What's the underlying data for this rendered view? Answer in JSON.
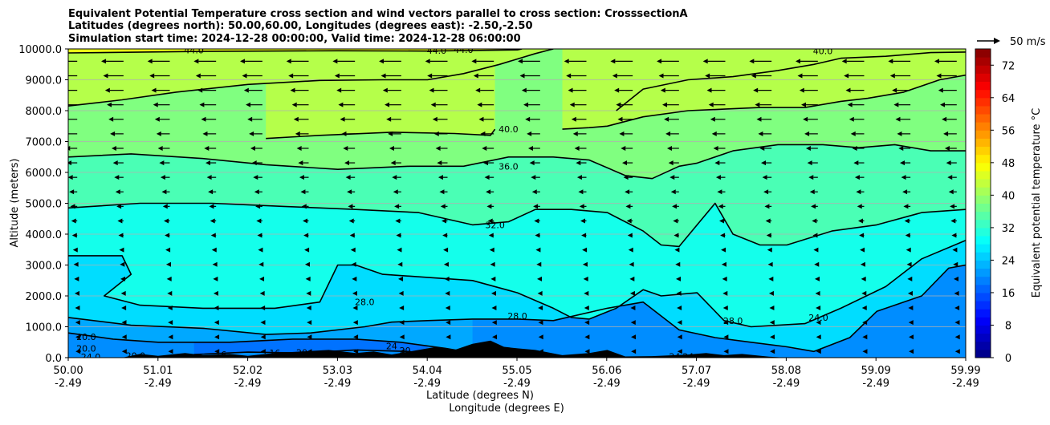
{
  "chart_data": {
    "type": "cross-section-contour",
    "title_lines": [
      "Equivalent Potential Temperature cross section and wind vectors parallel to cross section: CrosssectionA",
      "Latitudes (degrees north): 50.00,60.00, Longitudes (degrees east): -2.50,-2.50",
      "Simulation start time: 2024-12-28 00:00:00, Valid time: 2024-12-28 06:00:00"
    ],
    "xlabel_lat": "Latitude (degrees N)",
    "xlabel_lon": "Longitude (degrees E)",
    "ylabel": "Altitude (meters)",
    "x_tick_lat": [
      "50.00",
      "51.01",
      "52.02",
      "53.03",
      "54.04",
      "55.05",
      "56.06",
      "57.07",
      "58.08",
      "59.09",
      "59.99"
    ],
    "x_tick_lon": [
      "-2.49",
      "-2.49",
      "-2.49",
      "-2.49",
      "-2.49",
      "-2.49",
      "-2.49",
      "-2.49",
      "-2.49",
      "-2.49",
      "-2.49"
    ],
    "x_range": [
      50.0,
      59.99
    ],
    "y_range": [
      0,
      10000
    ],
    "y_ticks": [
      0,
      1000,
      2000,
      3000,
      4000,
      5000,
      6000,
      7000,
      8000,
      9000,
      10000
    ],
    "y_tick_labels": [
      "0.0",
      "1000.0",
      "2000.0",
      "3000.0",
      "4000.0",
      "5000.0",
      "6000.0",
      "7000.0",
      "8000.0",
      "9000.0",
      "10000.0"
    ],
    "grid": "horizontal",
    "colorbar": {
      "label": "Equivalent potential temperature °C",
      "min": 0,
      "max": 76,
      "ticks": [
        0,
        8,
        16,
        24,
        32,
        40,
        48,
        56,
        64,
        72
      ],
      "tick_labels": [
        "0",
        "8",
        "16",
        "24",
        "32",
        "40",
        "48",
        "56",
        "64",
        "72"
      ]
    },
    "quiver_key": {
      "label": "50 m/s"
    },
    "contours": [
      {
        "level": 44,
        "label": "44.0",
        "points": [
          [
            50.0,
            9870
          ],
          [
            51.5,
            9920
          ],
          [
            53.0,
            9940
          ],
          [
            54.0,
            9930
          ],
          [
            54.5,
            9950
          ],
          [
            55.0,
            9970
          ],
          [
            55.05,
            10000
          ]
        ]
      },
      {
        "level": 40,
        "label": "40.0",
        "points": [
          [
            50.0,
            8150
          ],
          [
            50.6,
            8350
          ],
          [
            51.2,
            8600
          ],
          [
            52.0,
            8850
          ],
          [
            52.8,
            8980
          ],
          [
            53.5,
            9000
          ],
          [
            54.0,
            9000
          ],
          [
            54.4,
            9200
          ],
          [
            54.8,
            9500
          ],
          [
            55.2,
            9850
          ],
          [
            55.4,
            10000
          ]
        ]
      },
      {
        "level": 40,
        "label": "",
        "points": [
          [
            56.1,
            8000
          ],
          [
            56.4,
            8700
          ],
          [
            56.9,
            9000
          ],
          [
            57.4,
            9100
          ],
          [
            57.9,
            9300
          ],
          [
            58.3,
            9500
          ],
          [
            58.6,
            9700
          ],
          [
            59.1,
            9760
          ],
          [
            59.6,
            9880
          ],
          [
            59.99,
            9900
          ]
        ]
      },
      {
        "level": 40,
        "label": "",
        "points": [
          [
            52.2,
            7100
          ],
          [
            52.8,
            7200
          ],
          [
            53.6,
            7300
          ],
          [
            54.3,
            7260
          ],
          [
            54.7,
            7200
          ],
          [
            54.75,
            7400
          ]
        ]
      },
      {
        "level": 40,
        "label": "",
        "points": [
          [
            55.5,
            7400
          ],
          [
            55.8,
            7450
          ],
          [
            56.0,
            7500
          ],
          [
            56.4,
            7800
          ],
          [
            56.9,
            8000
          ],
          [
            57.3,
            8050
          ],
          [
            57.7,
            8100
          ],
          [
            58.2,
            8100
          ],
          [
            58.6,
            8300
          ],
          [
            58.9,
            8400
          ],
          [
            59.3,
            8600
          ],
          [
            59.7,
            9000
          ],
          [
            59.99,
            9150
          ]
        ]
      },
      {
        "level": 36,
        "label": "36.0",
        "points": [
          [
            50.0,
            6500
          ],
          [
            50.7,
            6600
          ],
          [
            51.5,
            6450
          ],
          [
            52.2,
            6250
          ],
          [
            53.0,
            6100
          ],
          [
            53.8,
            6200
          ],
          [
            54.4,
            6200
          ],
          [
            54.9,
            6500
          ],
          [
            55.4,
            6500
          ],
          [
            55.8,
            6400
          ],
          [
            56.2,
            5900
          ],
          [
            56.5,
            5800
          ],
          [
            56.8,
            6200
          ],
          [
            57.0,
            6300
          ],
          [
            57.4,
            6700
          ],
          [
            57.9,
            6900
          ],
          [
            58.4,
            6900
          ],
          [
            58.8,
            6800
          ],
          [
            59.2,
            6900
          ],
          [
            59.6,
            6700
          ],
          [
            59.99,
            6700
          ]
        ]
      },
      {
        "level": 32,
        "label": "32.0",
        "points": [
          [
            50.0,
            4850
          ],
          [
            50.8,
            5000
          ],
          [
            51.6,
            5000
          ],
          [
            52.4,
            4900
          ],
          [
            53.2,
            4800
          ],
          [
            53.9,
            4700
          ],
          [
            54.5,
            4300
          ],
          [
            54.9,
            4400
          ],
          [
            55.2,
            4800
          ],
          [
            55.6,
            4800
          ],
          [
            56.0,
            4700
          ],
          [
            56.4,
            4100
          ],
          [
            56.6,
            3650
          ],
          [
            56.8,
            3600
          ],
          [
            57.0,
            4300
          ],
          [
            57.2,
            5000
          ],
          [
            57.4,
            4000
          ],
          [
            57.7,
            3650
          ],
          [
            58.0,
            3650
          ],
          [
            58.5,
            4100
          ],
          [
            59.0,
            4300
          ],
          [
            59.5,
            4700
          ],
          [
            59.99,
            4800
          ]
        ]
      },
      {
        "level": 28,
        "label": "28.0",
        "points": [
          [
            50.0,
            3300
          ],
          [
            50.6,
            3300
          ],
          [
            50.7,
            2700
          ],
          [
            50.4,
            2000
          ],
          [
            50.8,
            1700
          ],
          [
            51.5,
            1600
          ],
          [
            52.3,
            1600
          ],
          [
            52.8,
            1800
          ],
          [
            53.0,
            3000
          ],
          [
            53.2,
            3000
          ],
          [
            53.5,
            2700
          ],
          [
            54.0,
            2600
          ],
          [
            54.5,
            2500
          ],
          [
            55.0,
            2100
          ],
          [
            55.4,
            1600
          ],
          [
            55.6,
            1300
          ],
          [
            55.8,
            1250
          ],
          [
            56.1,
            1600
          ],
          [
            56.4,
            2200
          ],
          [
            56.6,
            2000
          ],
          [
            57.0,
            2100
          ],
          [
            57.3,
            1200
          ],
          [
            57.6,
            1000
          ],
          [
            58.2,
            1100
          ],
          [
            58.6,
            1600
          ],
          [
            59.1,
            2300
          ],
          [
            59.5,
            3200
          ],
          [
            59.99,
            3800
          ]
        ]
      },
      {
        "level": 24,
        "label": "24.0",
        "points": [
          [
            50.0,
            1300
          ],
          [
            50.7,
            1050
          ],
          [
            51.5,
            950
          ],
          [
            52.2,
            750
          ],
          [
            52.7,
            800
          ],
          [
            53.3,
            1000
          ],
          [
            53.6,
            1150
          ],
          [
            54.0,
            1200
          ],
          [
            54.5,
            1250
          ],
          [
            55.0,
            1250
          ],
          [
            55.4,
            1200
          ],
          [
            56.0,
            1600
          ],
          [
            56.4,
            1800
          ],
          [
            56.8,
            900
          ],
          [
            57.2,
            650
          ],
          [
            57.6,
            500
          ],
          [
            58.0,
            350
          ],
          [
            58.3,
            200
          ],
          [
            58.7,
            650
          ],
          [
            59.0,
            1500
          ],
          [
            59.5,
            2000
          ],
          [
            59.8,
            2900
          ],
          [
            59.99,
            3000
          ]
        ]
      },
      {
        "level": 20,
        "label": "20.0",
        "points": [
          [
            50.0,
            800
          ],
          [
            50.5,
            600
          ],
          [
            51.0,
            500
          ],
          [
            51.8,
            500
          ],
          [
            52.5,
            600
          ],
          [
            53.2,
            600
          ],
          [
            53.7,
            500
          ],
          [
            54.2,
            300
          ],
          [
            54.5,
            150
          ]
        ]
      },
      {
        "level": 16,
        "label": "16.0",
        "points": [
          [
            51.4,
            100
          ],
          [
            52.0,
            180
          ],
          [
            52.6,
            150
          ],
          [
            53.2,
            250
          ],
          [
            53.8,
            200
          ],
          [
            54.0,
            50
          ]
        ]
      }
    ],
    "contour_labels": [
      {
        "text": "44.0",
        "lat": 51.4,
        "alt": 9960
      },
      {
        "text": "44.0",
        "lat": 54.1,
        "alt": 9950
      },
      {
        "text": "44.0",
        "lat": 54.4,
        "alt": 9980
      },
      {
        "text": "40.0",
        "lat": 58.4,
        "alt": 9940
      },
      {
        "text": "40.0",
        "lat": 54.9,
        "alt": 7400
      },
      {
        "text": "36.0",
        "lat": 54.9,
        "alt": 6200
      },
      {
        "text": "32.0",
        "lat": 54.75,
        "alt": 4300
      },
      {
        "text": "28.0",
        "lat": 53.3,
        "alt": 1800
      },
      {
        "text": "28.0",
        "lat": 55.0,
        "alt": 1350
      },
      {
        "text": "28.0",
        "lat": 57.4,
        "alt": 1200
      },
      {
        "text": "24.0",
        "lat": 58.35,
        "alt": 1300
      },
      {
        "text": "20.0",
        "lat": 50.2,
        "alt": 680
      },
      {
        "text": "20.0",
        "lat": 50.2,
        "alt": 300
      },
      {
        "text": "24.0",
        "lat": 50.25,
        "alt": 30
      },
      {
        "text": "20.0",
        "lat": 50.75,
        "alt": 60
      },
      {
        "text": "16",
        "lat": 51.7,
        "alt": 100
      },
      {
        "text": "16",
        "lat": 52.3,
        "alt": 150
      },
      {
        "text": "20",
        "lat": 52.6,
        "alt": 170
      },
      {
        "text": "16.0",
        "lat": 53.0,
        "alt": 80
      },
      {
        "text": "24",
        "lat": 53.6,
        "alt": 380
      },
      {
        "text": "20",
        "lat": 53.75,
        "alt": 230
      },
      {
        "text": "24",
        "lat": 56.75,
        "alt": 40
      },
      {
        "text": "24",
        "lat": 56.9,
        "alt": 40
      }
    ],
    "terrain": [
      [
        50.0,
        0
      ],
      [
        50.6,
        0
      ],
      [
        50.8,
        120
      ],
      [
        51.0,
        60
      ],
      [
        51.3,
        150
      ],
      [
        51.5,
        80
      ],
      [
        51.8,
        120
      ],
      [
        52.0,
        60
      ],
      [
        52.3,
        150
      ],
      [
        52.6,
        200
      ],
      [
        52.9,
        250
      ],
      [
        53.2,
        150
      ],
      [
        53.4,
        200
      ],
      [
        53.6,
        100
      ],
      [
        53.9,
        250
      ],
      [
        54.1,
        350
      ],
      [
        54.3,
        250
      ],
      [
        54.5,
        450
      ],
      [
        54.7,
        550
      ],
      [
        54.85,
        350
      ],
      [
        55.0,
        300
      ],
      [
        55.2,
        250
      ],
      [
        55.5,
        80
      ],
      [
        55.8,
        150
      ],
      [
        56.0,
        250
      ],
      [
        56.2,
        40
      ],
      [
        56.5,
        50
      ],
      [
        56.9,
        100
      ],
      [
        57.1,
        150
      ],
      [
        57.3,
        80
      ],
      [
        57.5,
        120
      ],
      [
        57.8,
        30
      ],
      [
        58.0,
        0
      ]
    ]
  }
}
